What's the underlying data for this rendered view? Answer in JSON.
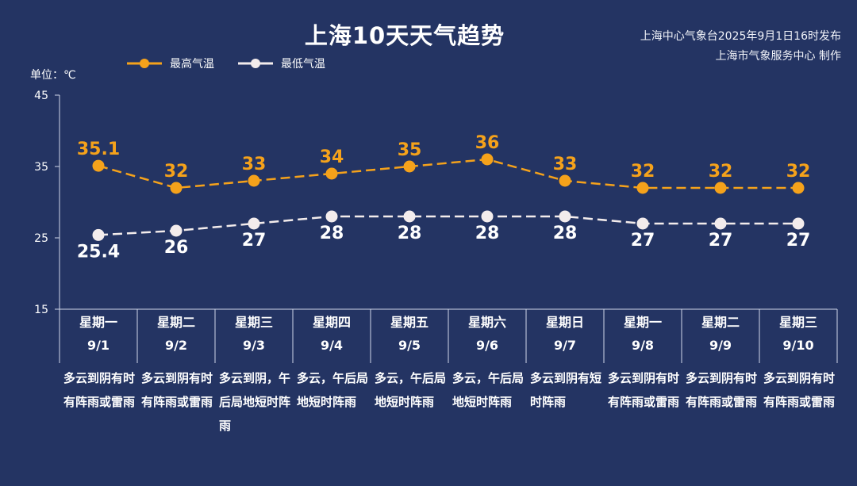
{
  "title": "上海10天天气趋势",
  "issuer": {
    "line1": "上海中心气象台2025年9月1日16时发布",
    "line2": "上海市气象服务中心 制作"
  },
  "unit_label": "单位：℃",
  "colors": {
    "background": "#243463",
    "high": "#f5a21b",
    "low": "#f3ecec",
    "axis": "#cfd6e8"
  },
  "chart_data": {
    "type": "line",
    "categories": [
      "9/1",
      "9/2",
      "9/3",
      "9/4",
      "9/5",
      "9/6",
      "9/7",
      "9/8",
      "9/9",
      "9/10"
    ],
    "series": [
      {
        "name": "最高气温",
        "values": [
          35.1,
          32,
          33,
          34,
          35,
          36,
          33,
          32,
          32,
          32
        ],
        "labels": [
          "35.1",
          "32",
          "33",
          "34",
          "35",
          "36",
          "33",
          "32",
          "32",
          "32"
        ]
      },
      {
        "name": "最低气温",
        "values": [
          25.4,
          26,
          27,
          28,
          28,
          28,
          28,
          27,
          27,
          27
        ],
        "labels": [
          "25.4",
          "26",
          "27",
          "28",
          "28",
          "28",
          "28",
          "27",
          "27",
          "27"
        ]
      }
    ],
    "ylim": [
      15,
      45
    ],
    "yticks": [
      "15",
      "25",
      "35",
      "45"
    ],
    "line_style": "dashed",
    "legend_position": "top-left"
  },
  "days": [
    {
      "weekday": "星期一",
      "date": "9/1",
      "desc": "多云到阴有时有阵雨或雷雨"
    },
    {
      "weekday": "星期二",
      "date": "9/2",
      "desc": "多云到阴有时有阵雨或雷雨"
    },
    {
      "weekday": "星期三",
      "date": "9/3",
      "desc": "多云到阴，午后局地短时阵雨"
    },
    {
      "weekday": "星期四",
      "date": "9/4",
      "desc": "多云，午后局地短时阵雨"
    },
    {
      "weekday": "星期五",
      "date": "9/5",
      "desc": "多云，午后局地短时阵雨"
    },
    {
      "weekday": "星期六",
      "date": "9/6",
      "desc": "多云，午后局地短时阵雨"
    },
    {
      "weekday": "星期日",
      "date": "9/7",
      "desc": "多云到阴有短时阵雨"
    },
    {
      "weekday": "星期一",
      "date": "9/8",
      "desc": "多云到阴有时有阵雨或雷雨"
    },
    {
      "weekday": "星期二",
      "date": "9/9",
      "desc": "多云到阴有时有阵雨或雷雨"
    },
    {
      "weekday": "星期三",
      "date": "9/10",
      "desc": "多云到阴有时有阵雨或雷雨"
    }
  ]
}
